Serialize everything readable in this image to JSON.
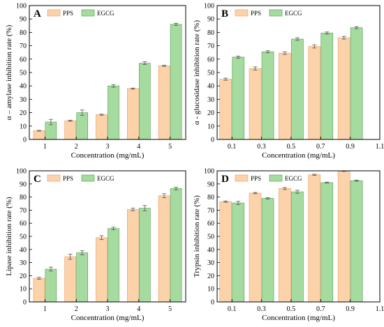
{
  "colors": {
    "pps_fill": "#fbd2aa",
    "pps_stroke": "#e89b5c",
    "egcg_fill": "#a6dba0",
    "egcg_stroke": "#4f9a4a",
    "error": "#555555"
  },
  "chart_data": [
    {
      "panel_label": "A",
      "type": "bar",
      "legend": [
        "PPS",
        "EGCG"
      ],
      "xlabel": "Concentration (mg/mL)",
      "ylabel": "α – amylase inhibition rate  (%)",
      "x_positions": [
        1,
        2,
        3,
        4,
        5
      ],
      "xlim": [
        0.5,
        5.5
      ],
      "xticks": [
        1,
        2,
        3,
        4,
        5
      ],
      "xtick_labels": [
        "1",
        "2",
        "3",
        "4",
        "5"
      ],
      "ylim": [
        0,
        100
      ],
      "yticks": [
        0,
        10,
        20,
        30,
        40,
        50,
        60,
        70,
        80,
        90,
        100
      ],
      "series": [
        {
          "name": "PPS",
          "x": [
            1,
            2,
            3,
            4,
            5
          ],
          "values": [
            6.5,
            14,
            18.5,
            38,
            55
          ],
          "errors": [
            0.3,
            0.4,
            0.4,
            0.4,
            0.4
          ]
        },
        {
          "name": "EGCG",
          "x": [
            1,
            2,
            3,
            4,
            5
          ],
          "values": [
            13,
            20,
            40,
            57,
            86
          ],
          "errors": [
            2,
            2,
            1,
            1,
            0.8
          ]
        }
      ]
    },
    {
      "panel_label": "B",
      "type": "bar",
      "legend": [
        "PPS",
        "EGCG"
      ],
      "xlabel": "Concentration (mg/mL)",
      "ylabel": "α - glucosidase inhibition rate  (%)",
      "x_positions": [
        0.1,
        0.3,
        0.5,
        0.7,
        0.9
      ],
      "xlim": [
        0,
        1.1
      ],
      "xticks": [
        0.1,
        0.3,
        0.5,
        0.7,
        0.9,
        1.1
      ],
      "xtick_labels": [
        "0.1",
        "0.3",
        "0.5",
        "0.7",
        "0.9",
        "1.1"
      ],
      "ylim": [
        0,
        100
      ],
      "yticks": [
        0,
        10,
        20,
        30,
        40,
        50,
        60,
        70,
        80,
        90,
        100
      ],
      "series": [
        {
          "name": "PPS",
          "x": [
            0.1,
            0.3,
            0.5,
            0.7,
            0.9
          ],
          "values": [
            45,
            53,
            64.5,
            69.5,
            76
          ],
          "errors": [
            0.8,
            1.2,
            1,
            1.2,
            1
          ]
        },
        {
          "name": "EGCG",
          "x": [
            0.1,
            0.3,
            0.5,
            0.7,
            0.9
          ],
          "values": [
            61.5,
            65.5,
            75,
            79.5,
            83.5
          ],
          "errors": [
            0.8,
            0.8,
            1,
            0.8,
            0.8
          ]
        }
      ]
    },
    {
      "panel_label": "C",
      "type": "bar",
      "legend": [
        "PPS",
        "EGCG"
      ],
      "xlabel": "Concentration (mg/mL)",
      "ylabel": "Lipase inhibition rate (%)",
      "x_positions": [
        1,
        2,
        3,
        4,
        5
      ],
      "xlim": [
        0.5,
        5.5
      ],
      "xticks": [
        1,
        2,
        3,
        4,
        5
      ],
      "xtick_labels": [
        "1",
        "2",
        "3",
        "4",
        "5"
      ],
      "ylim": [
        0,
        100
      ],
      "yticks": [
        0,
        10,
        20,
        30,
        40,
        50,
        60,
        70,
        80,
        90,
        100
      ],
      "series": [
        {
          "name": "PPS",
          "x": [
            1,
            2,
            3,
            4,
            5
          ],
          "values": [
            18,
            34.5,
            49,
            70.5,
            81
          ],
          "errors": [
            0.8,
            2,
            1.5,
            1,
            1.5
          ]
        },
        {
          "name": "EGCG",
          "x": [
            1,
            2,
            3,
            4,
            5
          ],
          "values": [
            25,
            37.5,
            56,
            71.5,
            86.5
          ],
          "errors": [
            1.5,
            1.5,
            1,
            2,
            1
          ]
        }
      ]
    },
    {
      "panel_label": "D",
      "type": "bar",
      "legend": [
        "PPS",
        "EGCG"
      ],
      "xlabel": "Concentration (mg/mL)",
      "ylabel": "Trypsin inhibition rate (%)",
      "x_positions": [
        0.1,
        0.3,
        0.5,
        0.7,
        0.9
      ],
      "xlim": [
        0,
        1.1
      ],
      "xticks": [
        0.1,
        0.3,
        0.5,
        0.7,
        0.9,
        1.1
      ],
      "xtick_labels": [
        "0.1",
        "0.3",
        "0.5",
        "0.7",
        "0.9",
        "1.1"
      ],
      "ylim": [
        0,
        100
      ],
      "yticks": [
        0,
        10,
        20,
        30,
        40,
        50,
        60,
        70,
        80,
        90,
        100
      ],
      "series": [
        {
          "name": "PPS",
          "x": [
            0.1,
            0.3,
            0.5,
            0.7,
            0.9
          ],
          "values": [
            76.5,
            83,
            86.5,
            97,
            100
          ],
          "errors": [
            0.5,
            0.5,
            0.8,
            0.4,
            0.4
          ]
        },
        {
          "name": "EGCG",
          "x": [
            0.1,
            0.3,
            0.5,
            0.7,
            0.9
          ],
          "values": [
            75.5,
            79,
            84,
            91,
            92.5
          ],
          "errors": [
            1.2,
            0.5,
            1.2,
            0.4,
            0.4
          ]
        }
      ]
    }
  ]
}
